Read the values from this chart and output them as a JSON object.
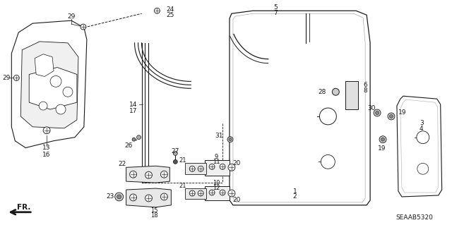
{
  "bg_color": "#ffffff",
  "diagram_code": "SEAAB5320",
  "fig_width": 6.4,
  "fig_height": 3.19,
  "dpi": 100,
  "dark": "#1a1a1a",
  "gray": "#888888"
}
